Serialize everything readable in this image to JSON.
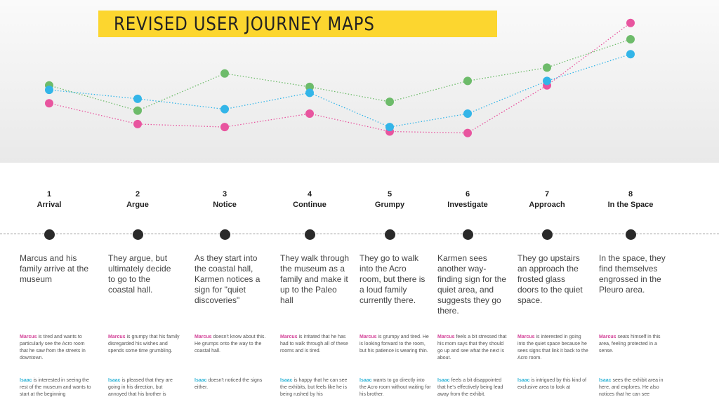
{
  "title": "REVISED USER JOURNEY MAPS",
  "colors": {
    "banner": "#fcd62f",
    "marcus": "#e8559f",
    "isaac": "#33b5e8",
    "third": "#6dbb6a",
    "stage_dot": "#2a2a2a"
  },
  "chart_data": {
    "type": "line",
    "categories": [
      "Arrival",
      "Argue",
      "Notice",
      "Continue",
      "Grumpy",
      "Investigate",
      "Approach",
      "In the Space"
    ],
    "ylim": [
      0,
      100
    ],
    "grid": false,
    "line_style": "dotted",
    "series": [
      {
        "color": "#e8559f",
        "values": [
          40,
          26,
          24,
          33,
          21,
          20,
          52,
          94
        ]
      },
      {
        "color": "#6dbb6a",
        "values": [
          52,
          35,
          60,
          51,
          41,
          55,
          64,
          83
        ]
      },
      {
        "color": "#33b5e8",
        "values": [
          49,
          43,
          36,
          47,
          24,
          33,
          55,
          73
        ]
      }
    ]
  },
  "stages": [
    {
      "num": "1",
      "name": "Arrival",
      "desc": "Marcus and his family arrive at the museum",
      "marcus_name": "Marcus",
      "marcus": " is tired and wants to particularly see the Acro room that he saw from the streets in downtown.",
      "isaac_name": "Isaac",
      "isaac": " is interested in seeing the rest of the museum and wants to start at the beginning"
    },
    {
      "num": "2",
      "name": "Argue",
      "desc": "They argue, but ultimately decide to go to the coastal hall.",
      "marcus_name": "Marcus",
      "marcus": " is grumpy that his family disregarded his wishes and spends some time grumbling.",
      "isaac_name": "Isaac",
      "isaac": " is pleased that they are going in his direction, but annoyed that his brother is"
    },
    {
      "num": "3",
      "name": "Notice",
      "desc": "As they start into the coastal hall, Karmen notices a sign for \"quiet discoveries\"",
      "marcus_name": "Marcus",
      "marcus": " doesn't know about this. He grumps onto the way to the coastal hall.",
      "isaac_name": "Isaac",
      "isaac": " doesn't noticed the signs either."
    },
    {
      "num": "4",
      "name": "Continue",
      "desc": "They walk through the museum as a family and make it up to the Paleo hall",
      "marcus_name": "Marcus",
      "marcus": " is irritated that he has had to walk through all of these rooms and is tired.",
      "isaac_name": "Isaac",
      "isaac": " is happy that he can see the exhibits, but feels like he is being rushed by his"
    },
    {
      "num": "5",
      "name": "Grumpy",
      "desc": "They go to walk into the Acro room, but there is a loud family currently there.",
      "marcus_name": "Marcus",
      "marcus": " is grumpy and tired. He is looking forward to the room, but his patience is wearing thin.",
      "isaac_name": "Isaac",
      "isaac": " wants to go directly into the Acro room without waiting for his brother."
    },
    {
      "num": "6",
      "name": "Investigate",
      "desc": "Karmen sees another way-finding sign for the quiet area, and suggests they go there.",
      "marcus_name": "Marcus",
      "marcus": " feels a bit stressed that his mom says that they should go up and see what the next is about.",
      "isaac_name": "Isaac",
      "isaac": " feels a bit disappointed that he's effectively being lead away from the exhibit."
    },
    {
      "num": "7",
      "name": "Approach",
      "desc": "They go upstairs an approach the frosted glass doors to the quiet space.",
      "marcus_name": "Marcus",
      "marcus": " is interested in going into the quiet space because he sees signs that link it back to the Acro room.",
      "isaac_name": "Isaac",
      "isaac": " is intrigued by this kind of exclusive area to look at"
    },
    {
      "num": "8",
      "name": "In the Space",
      "desc": "In the space, they find themselves engrossed in the Pleuro area.",
      "marcus_name": "Marcus",
      "marcus": " seats himself in this area, feeling protected in a sense.",
      "isaac_name": "Isaac",
      "isaac": " sees the exhibit area in here, and explores. He also notices that he can see"
    }
  ]
}
